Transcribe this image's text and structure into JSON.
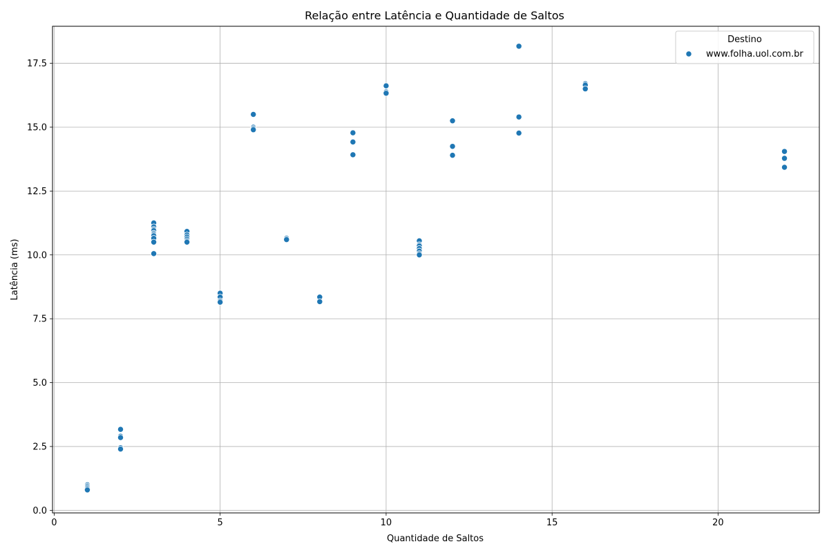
{
  "chart_data": {
    "type": "scatter",
    "title": "Relação entre Latência e Quantidade de Saltos",
    "xlabel": "Quantidade de Saltos",
    "ylabel": "Latência (ms)",
    "xlim": [
      -0.05,
      23.05
    ],
    "ylim": [
      -0.1,
      18.95
    ],
    "xticks": [
      0,
      5,
      10,
      15,
      20
    ],
    "xtick_labels": [
      "0",
      "5",
      "10",
      "15",
      "20"
    ],
    "yticks": [
      0,
      2.5,
      5,
      7.5,
      10,
      12.5,
      15,
      17.5
    ],
    "ytick_labels": [
      "0.0",
      "2.5",
      "5.0",
      "7.5",
      "10.0",
      "12.5",
      "15.0",
      "17.5"
    ],
    "grid": true,
    "legend": {
      "title": "Destino",
      "placement": "top-right",
      "entries": [
        "www.folha.uol.com.br"
      ]
    },
    "series": [
      {
        "name": "www.folha.uol.com.br",
        "color": "#1f77b4",
        "points": [
          [
            1,
            1.0
          ],
          [
            1,
            0.95
          ],
          [
            1,
            0.9
          ],
          [
            1,
            0.85
          ],
          [
            1,
            0.8
          ],
          [
            2,
            3.17
          ],
          [
            2,
            2.9
          ],
          [
            2,
            2.85
          ],
          [
            2,
            2.45
          ],
          [
            2,
            2.4
          ],
          [
            3,
            11.25
          ],
          [
            3,
            11.1
          ],
          [
            3,
            11.0
          ],
          [
            3,
            10.95
          ],
          [
            3,
            10.85
          ],
          [
            3,
            10.8
          ],
          [
            3,
            10.75
          ],
          [
            3,
            10.65
          ],
          [
            3,
            10.5
          ],
          [
            3,
            10.05
          ],
          [
            4,
            10.92
          ],
          [
            4,
            10.78
          ],
          [
            4,
            10.7
          ],
          [
            4,
            10.62
          ],
          [
            4,
            10.55
          ],
          [
            4,
            10.5
          ],
          [
            5,
            8.5
          ],
          [
            5,
            8.35
          ],
          [
            5,
            8.2
          ],
          [
            5,
            8.15
          ],
          [
            6,
            15.5
          ],
          [
            6,
            15.0
          ],
          [
            6,
            14.95
          ],
          [
            6,
            14.9
          ],
          [
            7,
            10.65
          ],
          [
            7,
            10.6
          ],
          [
            8,
            8.35
          ],
          [
            8,
            8.17
          ],
          [
            9,
            14.78
          ],
          [
            9,
            14.42
          ],
          [
            9,
            13.92
          ],
          [
            10,
            16.62
          ],
          [
            10,
            16.38
          ],
          [
            10,
            16.33
          ],
          [
            11,
            10.55
          ],
          [
            11,
            10.4
          ],
          [
            11,
            10.35
          ],
          [
            11,
            10.25
          ],
          [
            11,
            10.15
          ],
          [
            11,
            10.05
          ],
          [
            11,
            10.0
          ],
          [
            12,
            15.25
          ],
          [
            12,
            14.25
          ],
          [
            12,
            13.9
          ],
          [
            14,
            18.17
          ],
          [
            14,
            15.4
          ],
          [
            14,
            14.77
          ],
          [
            16,
            16.7
          ],
          [
            16,
            16.65
          ],
          [
            16,
            16.5
          ],
          [
            22,
            14.05
          ],
          [
            22,
            13.78
          ],
          [
            22,
            13.43
          ]
        ]
      }
    ]
  }
}
